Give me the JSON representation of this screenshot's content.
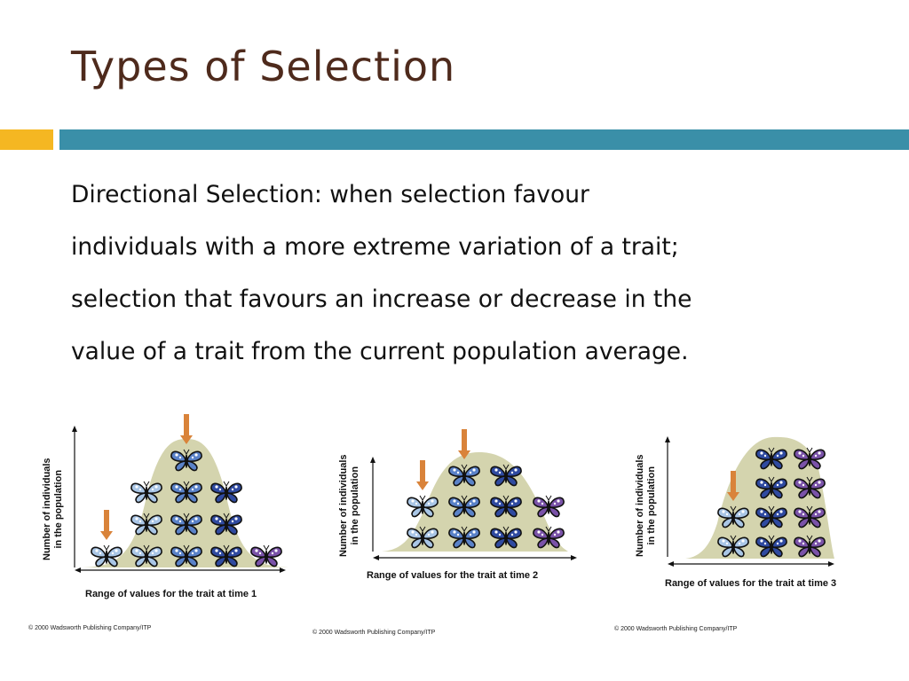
{
  "slide": {
    "title": "Types of Selection",
    "body_lines": [
      "Directional Selection: when selection favour",
      "individuals with a more extreme variation of a trait;",
      "selection that favours an increase or decrease in the",
      "value of a trait from the current population average."
    ]
  },
  "panels": [
    {
      "ylabel_line1": "Number of individuals",
      "ylabel_line2": "in the population",
      "xlabel": "Range of values for the trait at time 1",
      "copyright": "© 2000 Wadsworth Publishing Company/ITP",
      "columns": [
        {
          "count": 1,
          "arrow": true
        },
        {
          "count": 3,
          "arrow": false
        },
        {
          "count": 4,
          "arrow": true
        },
        {
          "count": 3,
          "arrow": false
        },
        {
          "count": 1,
          "arrow": false
        }
      ]
    },
    {
      "ylabel_line1": "Number of individuals",
      "ylabel_line2": "in the population",
      "xlabel": "Range of values for the trait at time 2",
      "copyright": "© 2000 Wadsworth Publishing Company/ITP",
      "columns": [
        {
          "count": 2,
          "arrow": true
        },
        {
          "count": 3,
          "arrow": true
        },
        {
          "count": 3,
          "arrow": false
        },
        {
          "count": 2,
          "arrow": false
        }
      ]
    },
    {
      "ylabel_line1": "Number of individuals",
      "ylabel_line2": "in the population",
      "xlabel": "Range of values for the trait at time 3",
      "copyright": "© 2000 Wadsworth Publishing Company/ITP",
      "columns": [
        {
          "count": 2,
          "arrow": true
        },
        {
          "count": 4,
          "arrow": false
        },
        {
          "count": 4,
          "arrow": false
        }
      ]
    }
  ],
  "colors": {
    "title": "#4e2a1c",
    "accent_orange": "#f5b722",
    "accent_teal": "#3a8fa8",
    "curve_fill": "#d4d4ae",
    "arrow": "#d9833a",
    "butterfly_light": "#a9c6e6",
    "butterfly_mid": "#5a82c8",
    "butterfly_dark": "#2f4aa0",
    "butterfly_purple": "#7a52a8"
  }
}
